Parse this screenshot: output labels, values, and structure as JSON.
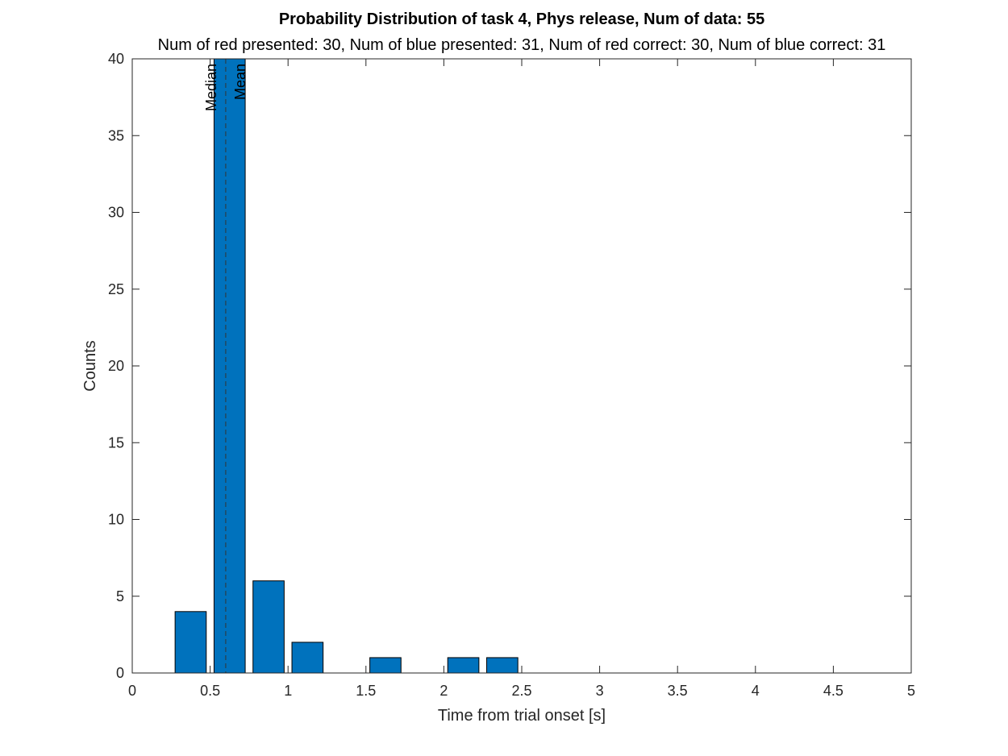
{
  "chart_data": {
    "type": "bar",
    "title": "Probability Distribution of task 4, Phys release, Num of data: 55",
    "subtitle": "Num of red presented: 30, Num of blue presented: 31, Num of red correct: 30, Num of blue correct: 31",
    "xlabel": "Time from trial onset [s]",
    "ylabel": "Counts",
    "xlim": [
      0,
      5
    ],
    "ylim": [
      0,
      40
    ],
    "xticks": [
      0,
      0.5,
      1,
      1.5,
      2,
      2.5,
      3,
      3.5,
      4,
      4.5,
      5
    ],
    "xtick_labels": [
      "0",
      "0.5",
      "1",
      "1.5",
      "2",
      "2.5",
      "3",
      "3.5",
      "4",
      "4.5",
      "5"
    ],
    "yticks": [
      0,
      5,
      10,
      15,
      20,
      25,
      30,
      35,
      40
    ],
    "ytick_labels": [
      "0",
      "5",
      "10",
      "15",
      "20",
      "25",
      "30",
      "35",
      "40"
    ],
    "bin_width": 0.25,
    "bar_width": 0.2,
    "bin_centers": [
      0.375,
      0.625,
      0.875,
      1.125,
      1.375,
      1.625,
      1.875,
      2.125,
      2.375
    ],
    "values": [
      4,
      40,
      6,
      2,
      0,
      1,
      0,
      1,
      1
    ],
    "bar_color": "#0072BD",
    "grid": false,
    "box": true,
    "reference_lines": [
      {
        "label": "Median",
        "x": 0.6,
        "style": "dashed"
      },
      {
        "label": "Mean",
        "x": 0.7,
        "style": "none"
      }
    ]
  }
}
